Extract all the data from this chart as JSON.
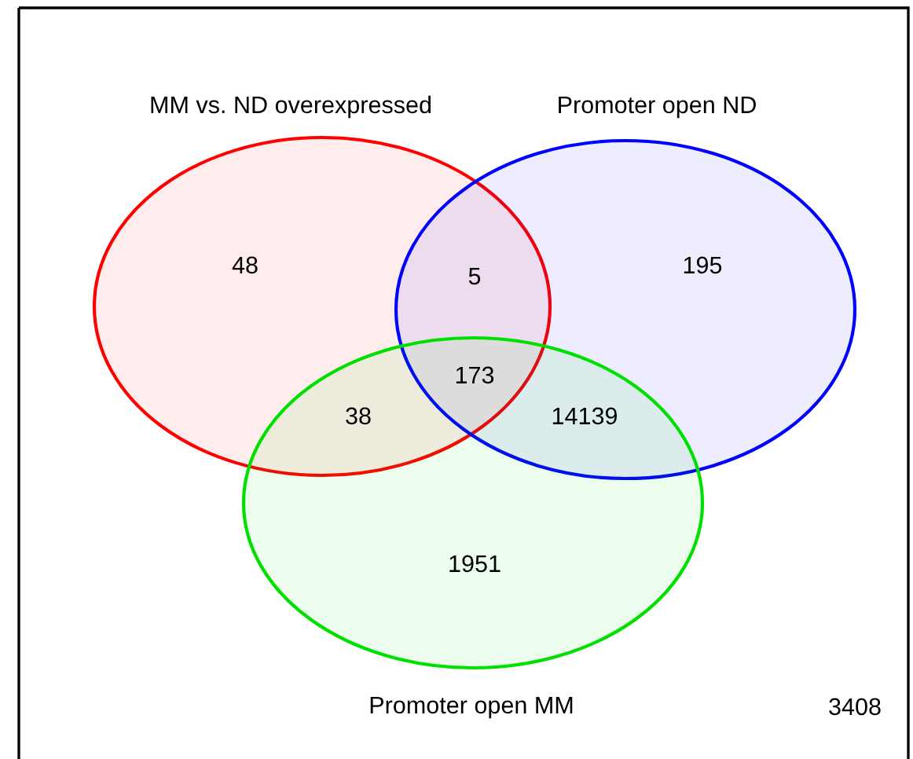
{
  "chart_data": {
    "type": "other",
    "categories": [
      null,
      null,
      null,
      null,
      null,
      null,
      null
    ],
    "values": [
      48,
      5,
      195,
      173,
      38,
      14139,
      1951
    ],
    "data_labels": true,
    "annotations": [
      "MM vs. ND overexpressed",
      "Promoter open ND",
      "Promoter open MM",
      "3408"
    ]
  }
}
